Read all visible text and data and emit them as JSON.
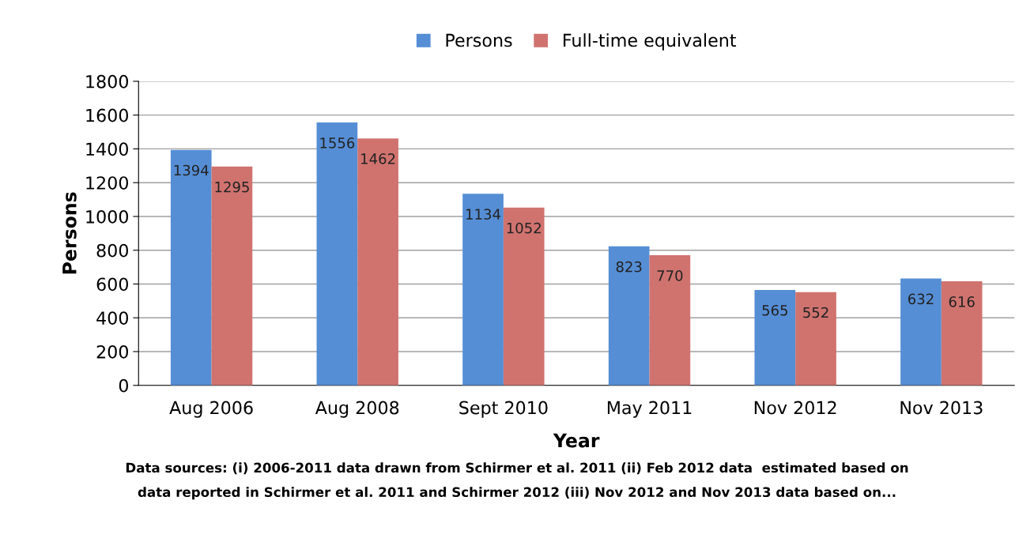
{
  "chart_data": {
    "type": "bar",
    "xlabel": "Year",
    "ylabel": "Persons",
    "categories": [
      "Aug 2006",
      "Aug 2008",
      "Sept 2010",
      "May 2011",
      "Nov 2012",
      "Nov 2013"
    ],
    "series": [
      {
        "name": "Persons",
        "color": "#558ed5",
        "values": [
          1394,
          1556,
          1134,
          823,
          565,
          632
        ]
      },
      {
        "name": "Full-time equivalent",
        "color": "#d0736f",
        "values": [
          1295,
          1462,
          1052,
          770,
          552,
          616
        ]
      }
    ],
    "ylim": [
      0,
      1800
    ],
    "yticks": [
      0,
      200,
      400,
      600,
      800,
      1000,
      1200,
      1400,
      1600,
      1800
    ],
    "grid": "y",
    "legend": "top",
    "data_labels": true,
    "annotations": [
      "Data sources: (i) 2006-2011 data drawn from Schirmer et al. 2011 (ii) Feb 2012 data  estimated based on",
      "data reported in Schirmer et al. 2011 and Schirmer 2012 (iii) Nov 2012 and Nov 2013 data based on..."
    ]
  }
}
